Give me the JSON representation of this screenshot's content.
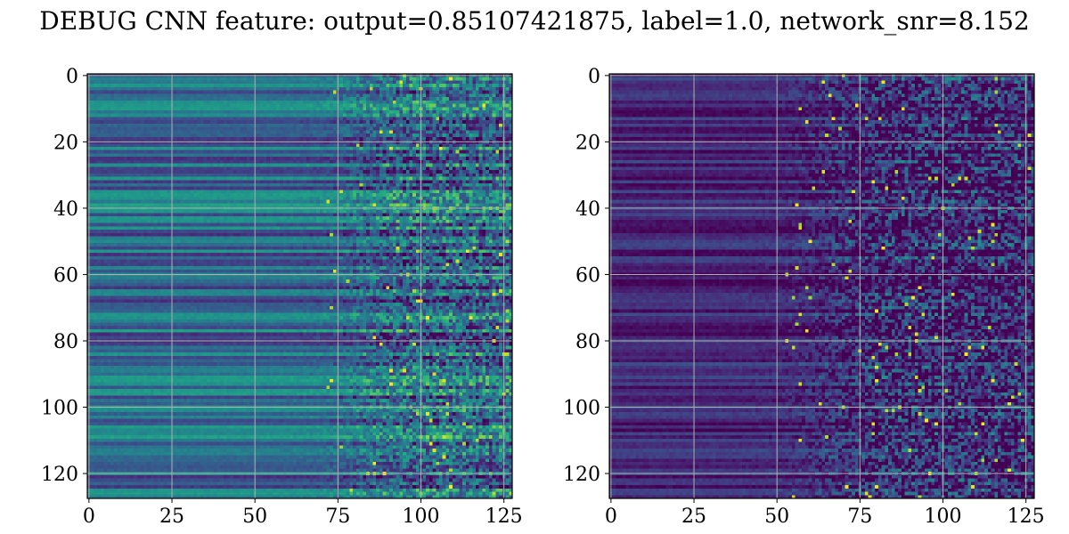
{
  "chart_data": [
    {
      "type": "heatmap",
      "title": "DEBUG CNN feature: output=0.85107421875, label=1.0, network_snr=8.152",
      "colormap": "viridis",
      "grid": true,
      "xlim": [
        -0.5,
        127.5
      ],
      "ylim": [
        127.5,
        -0.5
      ],
      "x_ticks": [
        0,
        25,
        50,
        75,
        100,
        125
      ],
      "y_ticks": [
        0,
        20,
        40,
        60,
        80,
        100,
        120
      ],
      "x_tick_labels": [
        "0",
        "25",
        "50",
        "75",
        "100",
        "125"
      ],
      "y_tick_labels": [
        "0",
        "20",
        "40",
        "60",
        "80",
        "100",
        "120"
      ],
      "rows": 128,
      "cols": 128,
      "texture": {
        "row_band_base": 0.35,
        "row_band_var": 0.22,
        "noise_onset_col": 70,
        "noise_amplitude": 0.55,
        "seed": 7
      }
    },
    {
      "type": "heatmap",
      "title": "",
      "colormap": "viridis",
      "grid": true,
      "xlim": [
        -0.5,
        127.5
      ],
      "ylim": [
        127.5,
        -0.5
      ],
      "x_ticks": [
        0,
        25,
        50,
        75,
        100,
        125
      ],
      "y_ticks": [
        0,
        20,
        40,
        60,
        80,
        100,
        120
      ],
      "x_tick_labels": [
        "0",
        "25",
        "50",
        "75",
        "100",
        "125"
      ],
      "y_tick_labels": [
        "0",
        "20",
        "40",
        "60",
        "80",
        "100",
        "120"
      ],
      "rows": 128,
      "cols": 128,
      "texture": {
        "row_band_base": 0.12,
        "row_band_var": 0.12,
        "noise_onset_col": 52,
        "noise_amplitude": 0.6,
        "seed": 21
      }
    }
  ]
}
